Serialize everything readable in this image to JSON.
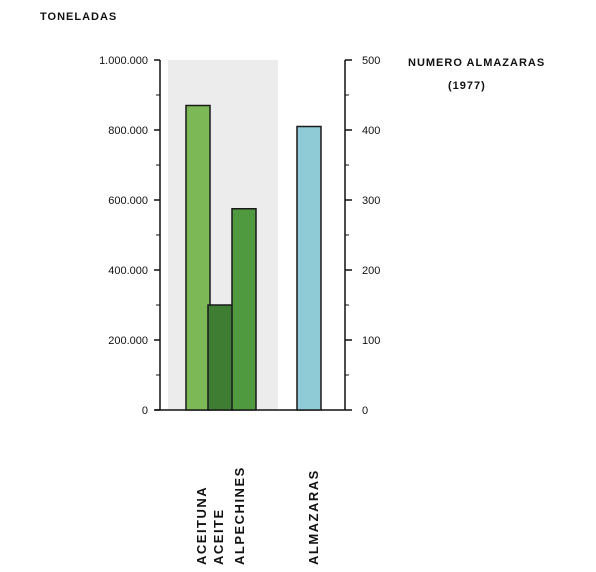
{
  "chart_data": {
    "type": "bar",
    "left_axis": {
      "label": "TONELADAS",
      "ylim": [
        0,
        1000000
      ],
      "ticks": [
        0,
        200000,
        400000,
        600000,
        800000,
        1000000
      ],
      "tick_labels": [
        "0",
        "200.000",
        "400.000",
        "600.000",
        "800.000",
        "1.000.000"
      ]
    },
    "right_axis": {
      "label": "NUMERO ALMAZARAS",
      "sublabel": "(1977)",
      "ylim": [
        0,
        500
      ],
      "ticks": [
        0,
        100,
        200,
        300,
        400,
        500
      ],
      "tick_labels": [
        "0",
        "100",
        "200",
        "300",
        "400",
        "500"
      ]
    },
    "categories": [
      "ACEITUNA",
      "ACEITE",
      "ALPECHINES",
      "ALMAZARAS"
    ],
    "series": [
      {
        "category": "ACEITUNA",
        "value": 870000,
        "axis": "left",
        "color": "#7db857"
      },
      {
        "category": "ACEITE",
        "value": 300000,
        "axis": "left",
        "color": "#3f7d33"
      },
      {
        "category": "ALPECHINES",
        "value": 575000,
        "axis": "left",
        "color": "#4f9a3e"
      },
      {
        "category": "ALMAZARAS",
        "value": 405,
        "axis": "right",
        "color": "#8fcbd6"
      }
    ],
    "grid": false
  }
}
